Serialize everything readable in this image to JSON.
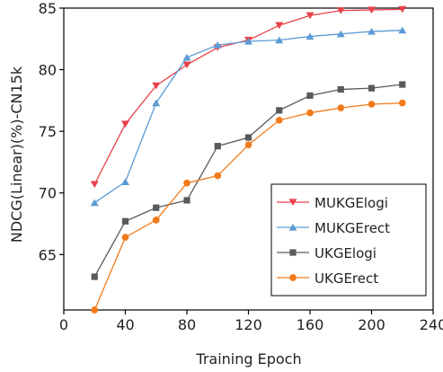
{
  "chart_data": {
    "type": "line",
    "xlabel": "Training Epoch",
    "ylabel": "NDCG(Linear)(%)-CN15k",
    "xlim": [
      0,
      240
    ],
    "ylim": [
      60.5,
      85
    ],
    "xticks": [
      0,
      40,
      80,
      120,
      160,
      200,
      240
    ],
    "yticks": [
      65,
      70,
      75,
      80,
      85
    ],
    "grid": false,
    "legend_position": "lower-right",
    "x": [
      20,
      40,
      60,
      80,
      100,
      120,
      140,
      160,
      180,
      200,
      220
    ],
    "series": [
      {
        "name": "MUKGElogi",
        "color": "#e8424a",
        "marker": "triangle-down",
        "values": [
          70.7,
          75.6,
          78.7,
          80.4,
          81.8,
          82.4,
          83.6,
          84.4,
          84.8,
          84.85,
          84.9
        ]
      },
      {
        "name": "MUKGErect",
        "color": "#5b9bd5",
        "marker": "triangle-up",
        "values": [
          69.2,
          70.9,
          77.3,
          81.0,
          82.0,
          82.3,
          82.4,
          82.7,
          82.9,
          83.1,
          83.2
        ]
      },
      {
        "name": "UKGElogi",
        "color": "#5a5a5a",
        "marker": "square",
        "values": [
          63.2,
          67.7,
          68.8,
          69.4,
          73.8,
          74.5,
          76.7,
          77.9,
          78.4,
          78.5,
          78.8
        ]
      },
      {
        "name": "UKGErect",
        "color": "#f27a1a",
        "marker": "circle",
        "values": [
          60.5,
          66.4,
          67.8,
          70.8,
          71.4,
          73.9,
          75.9,
          76.5,
          76.9,
          77.2,
          77.3
        ]
      }
    ]
  }
}
